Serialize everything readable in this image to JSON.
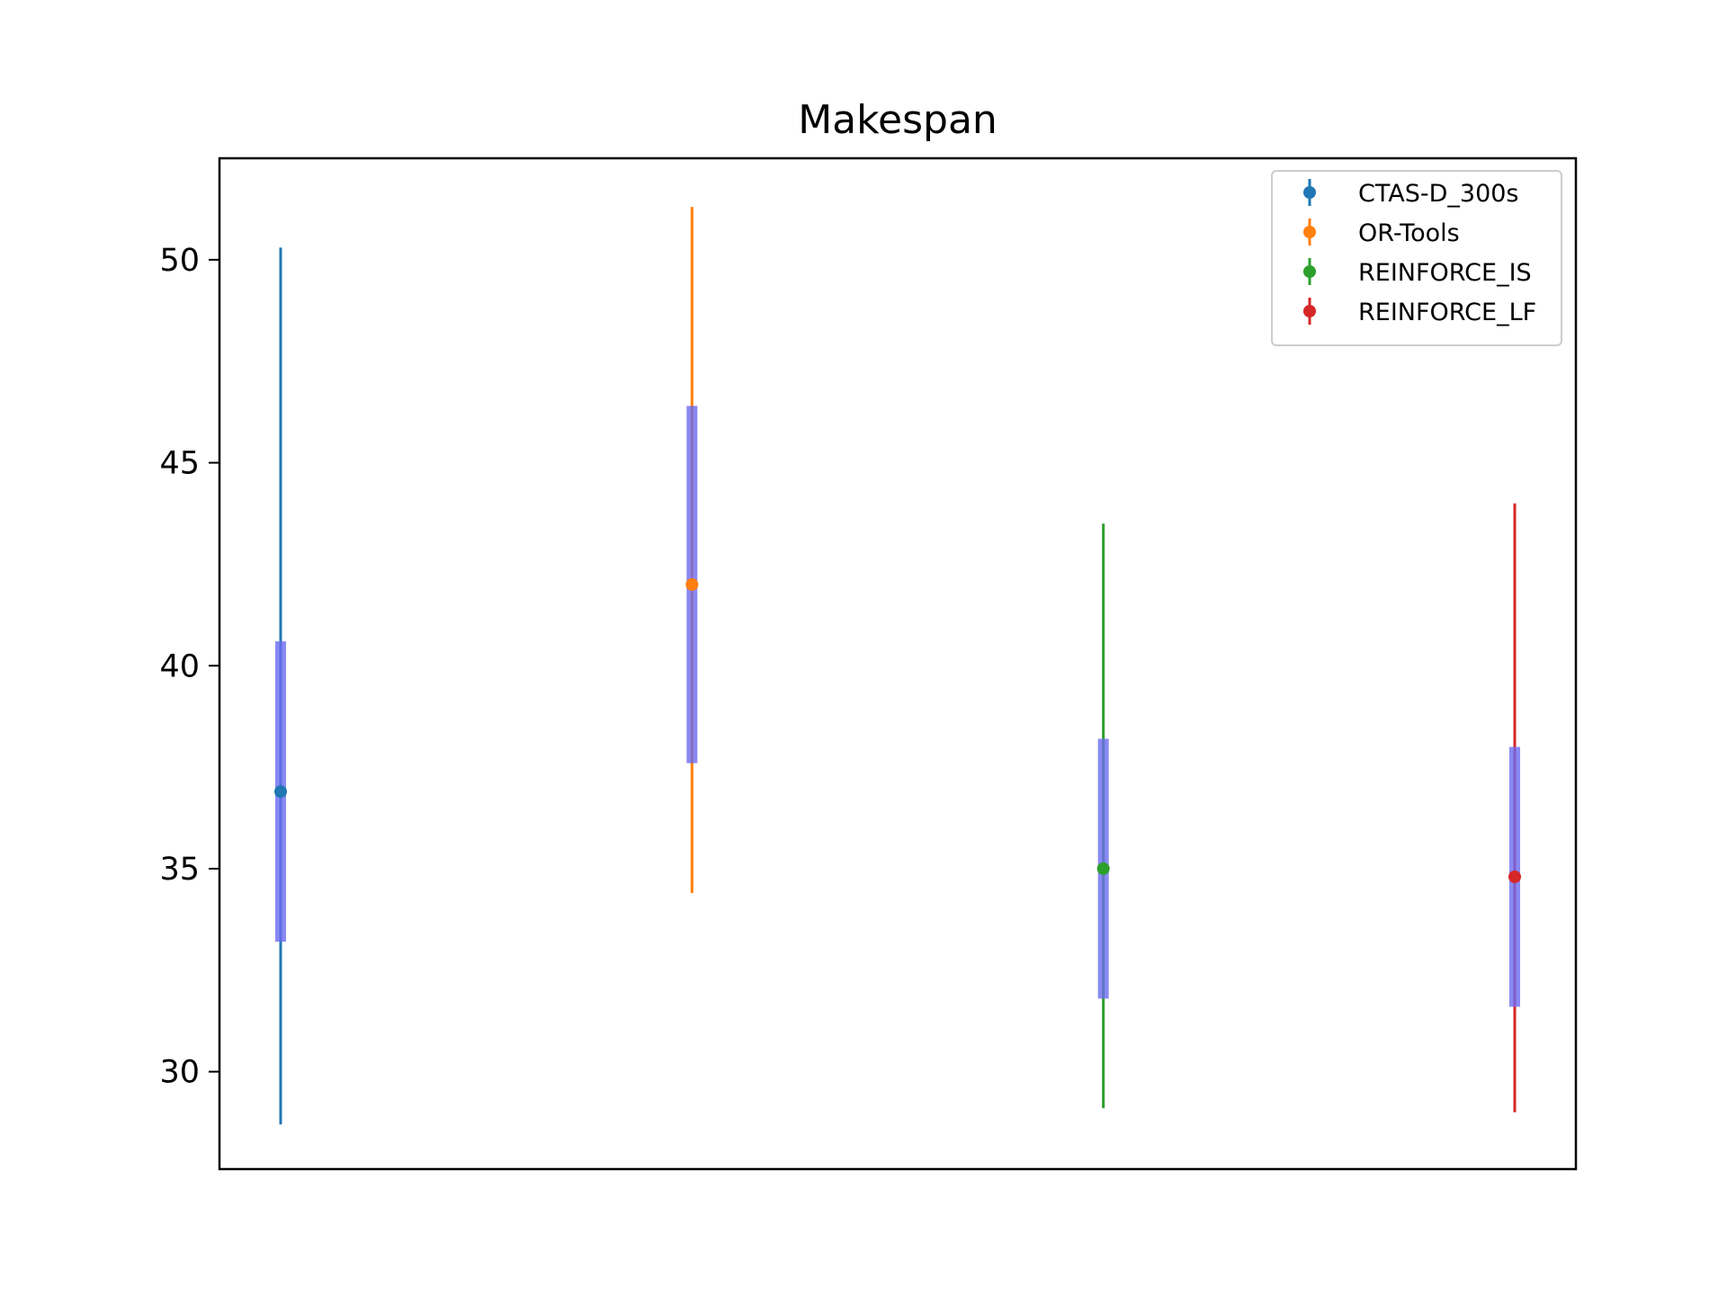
{
  "chart_data": {
    "type": "errorbar",
    "title": "Makespan",
    "xlabel": "",
    "ylabel": "",
    "ylim": [
      27.6,
      52.5
    ],
    "yticks": [
      30,
      35,
      40,
      45,
      50
    ],
    "grid": false,
    "legend_position": "top-right",
    "band_color": "#6b6bf0",
    "series": [
      {
        "name": "CTAS-D_300s",
        "color": "#1f77b4",
        "mean": 36.9,
        "min": 28.7,
        "max": 50.3,
        "band_low": 33.2,
        "band_high": 40.6
      },
      {
        "name": "OR-Tools",
        "color": "#ff7f0e",
        "mean": 42.0,
        "min": 34.4,
        "max": 51.3,
        "band_low": 37.6,
        "band_high": 46.4
      },
      {
        "name": "REINFORCE_IS",
        "color": "#2ca02c",
        "mean": 35.0,
        "min": 29.1,
        "max": 43.5,
        "band_low": 31.8,
        "band_high": 38.2
      },
      {
        "name": "REINFORCE_LF",
        "color": "#d62728",
        "mean": 34.8,
        "min": 29.0,
        "max": 44.0,
        "band_low": 31.6,
        "band_high": 38.0
      }
    ]
  }
}
